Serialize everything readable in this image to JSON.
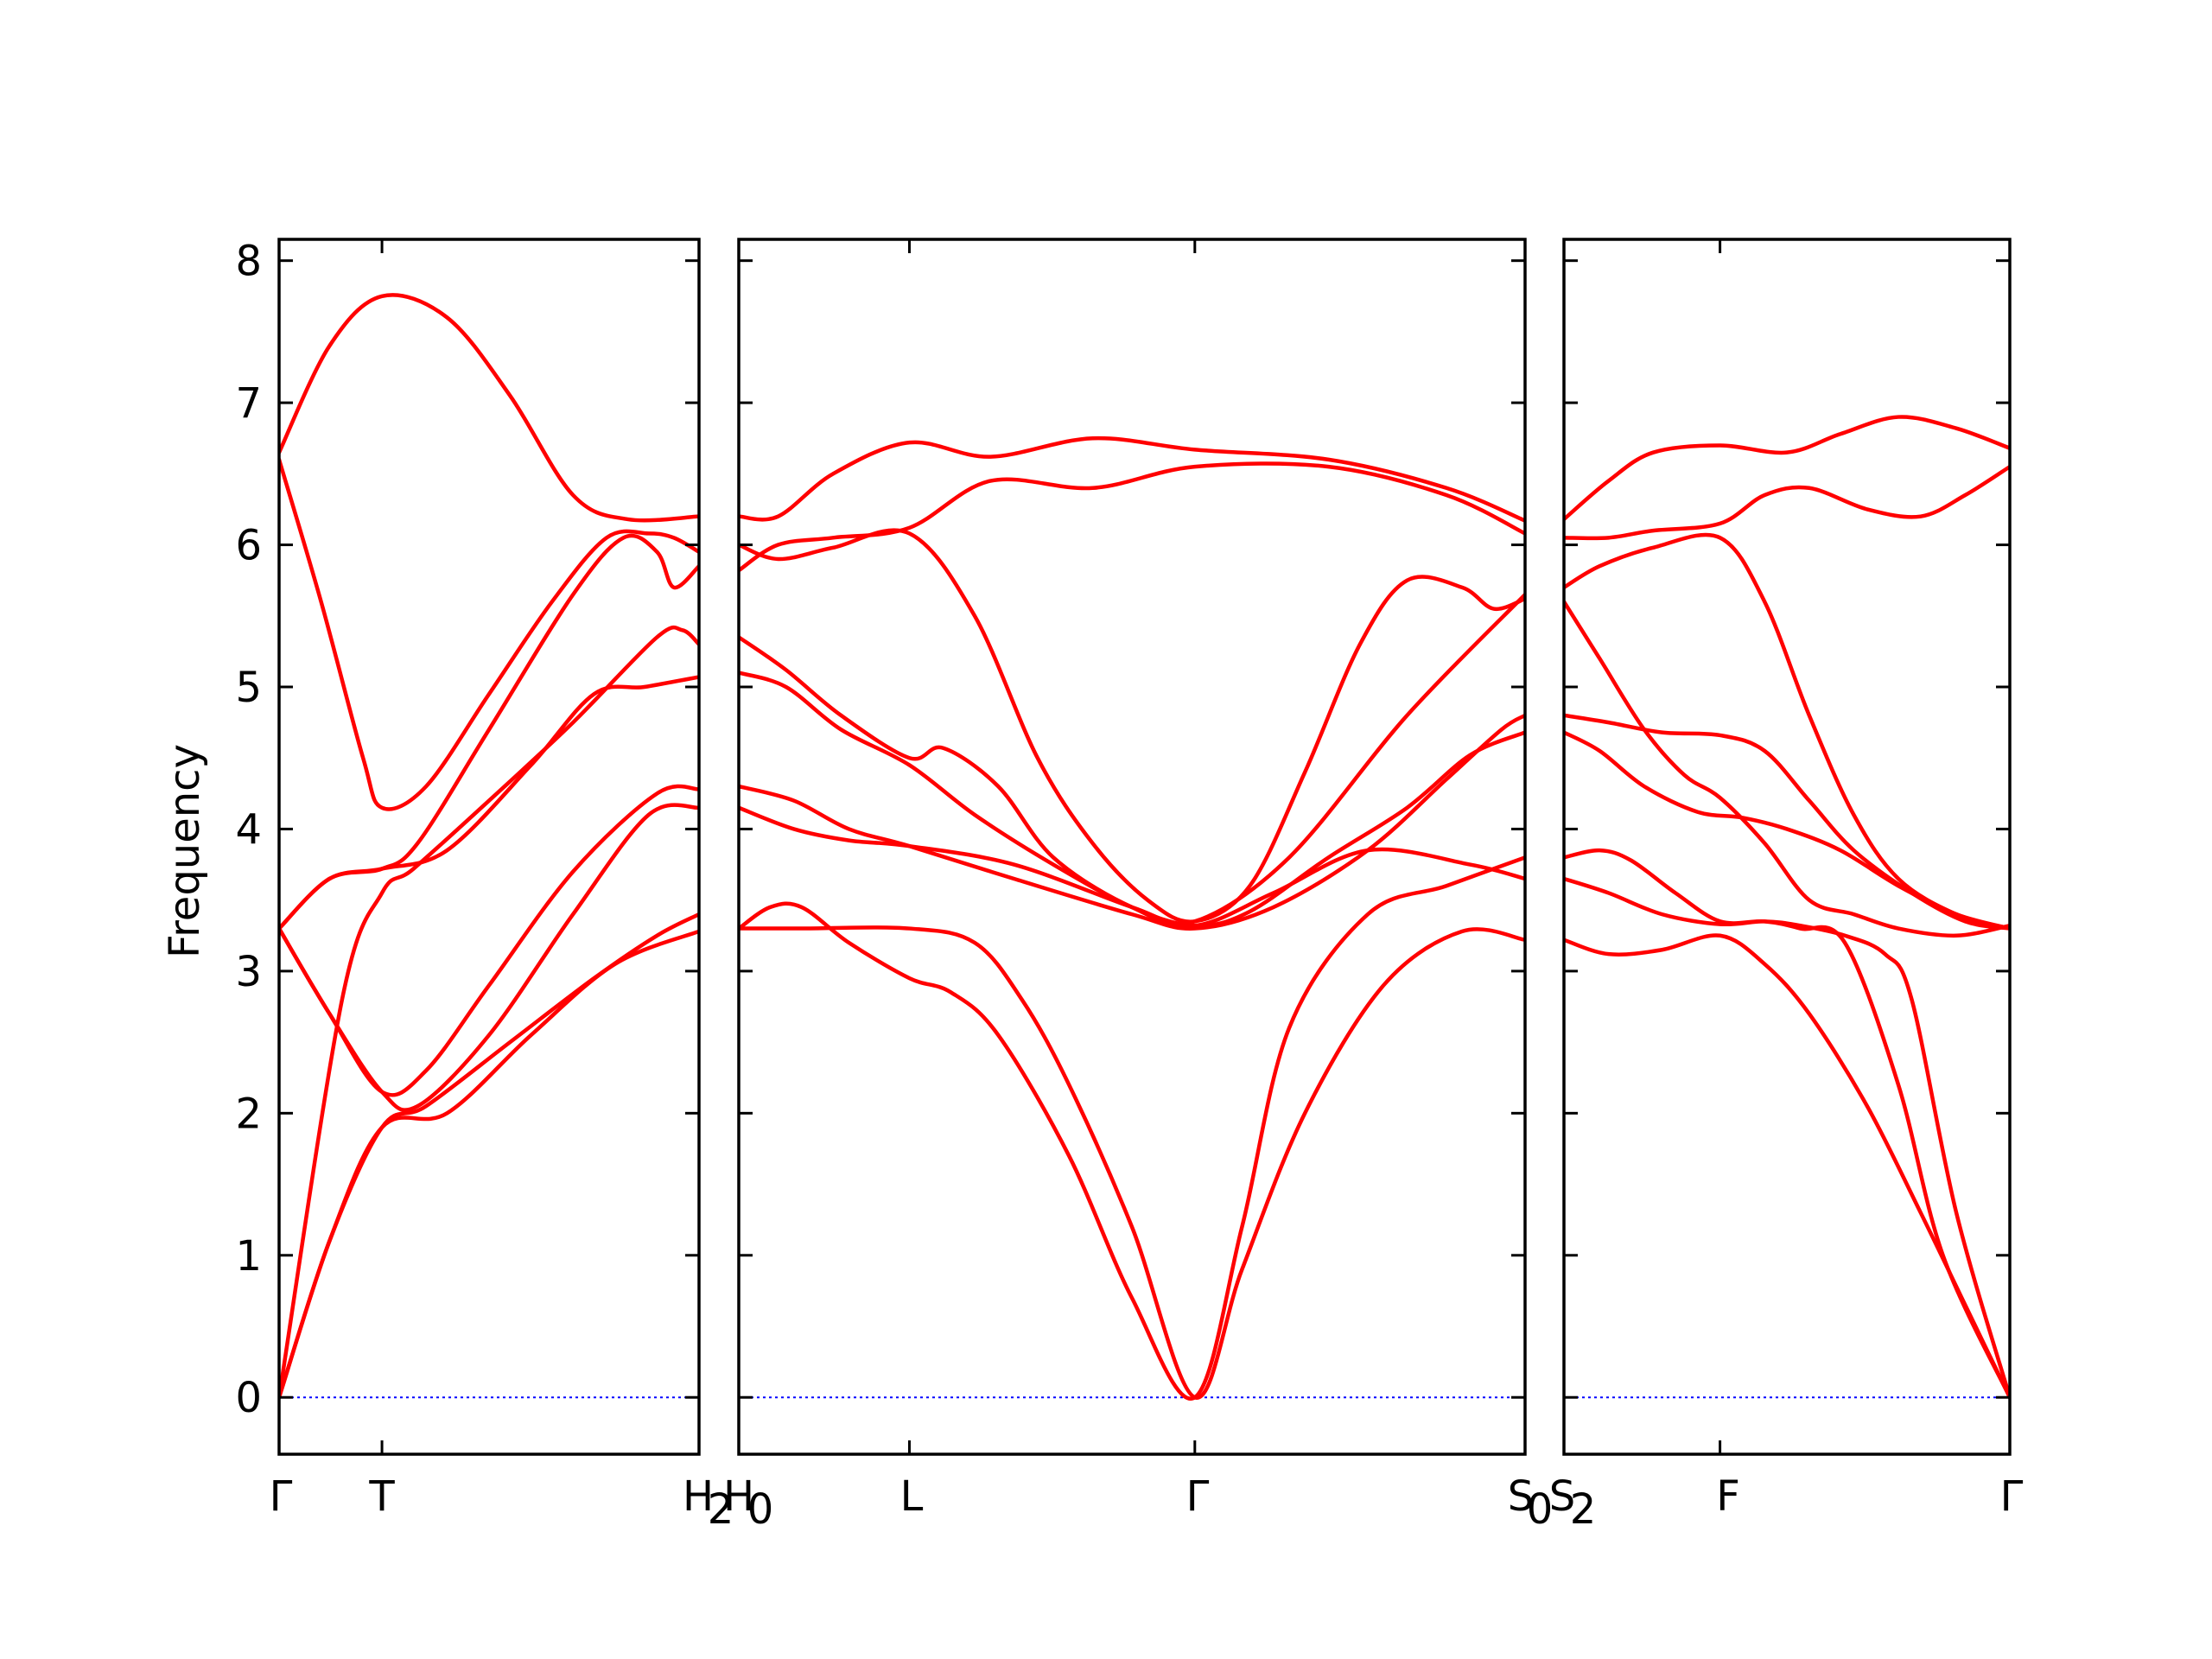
{
  "chart_data": {
    "type": "line",
    "title": "",
    "ylabel": "Frequency",
    "xlabel": "",
    "ylim": [
      -0.4,
      8.15
    ],
    "yticks": [
      0,
      1,
      2,
      3,
      4,
      5,
      6,
      7,
      8
    ],
    "grid": false,
    "legend": "none",
    "colors": {
      "bands": "#ff0000",
      "zero_line": "#0000ff",
      "axes": "#000000"
    },
    "segments": [
      {
        "labels": [
          "Γ",
          "T",
          "H",
          "2"
        ],
        "tick_x": [
          0,
          0.245,
          1.0
        ],
        "xlim": [
          0,
          1
        ],
        "series": [
          {
            "x": [
              0,
              0.12,
              0.245,
              0.4,
              0.55,
              0.7,
              0.83,
              1.0
            ],
            "y": [
              6.65,
              7.4,
              7.75,
              7.6,
              7.05,
              6.35,
              6.18,
              6.2
            ]
          },
          {
            "x": [
              0,
              0.1,
              0.2,
              0.245,
              0.35,
              0.5,
              0.65,
              0.78,
              0.88,
              0.94,
              1.0
            ],
            "y": [
              6.6,
              5.6,
              4.5,
              4.15,
              4.3,
              4.95,
              5.6,
              6.05,
              6.08,
              6.05,
              5.95
            ]
          },
          {
            "x": [
              0,
              0.12,
              0.245,
              0.33,
              0.5,
              0.7,
              0.82,
              0.9,
              0.94,
              1.0
            ],
            "y": [
              3.3,
              3.65,
              3.72,
              3.9,
              4.7,
              5.65,
              6.05,
              5.95,
              5.7,
              5.85
            ]
          },
          {
            "x": [
              0,
              0.12,
              0.245,
              0.4,
              0.6,
              0.75,
              0.87,
              1.0
            ],
            "y": [
              3.3,
              3.65,
              3.72,
              3.85,
              4.45,
              4.95,
              5.0,
              5.07
            ]
          },
          {
            "x": [
              0,
              0.15,
              0.245,
              0.32,
              0.5,
              0.7,
              0.9,
              0.96,
              1.0
            ],
            "y": [
              0.0,
              2.8,
              3.55,
              3.72,
              4.2,
              4.75,
              5.35,
              5.4,
              5.3
            ]
          },
          {
            "x": [
              0,
              0.12,
              0.245,
              0.35,
              0.5,
              0.7,
              0.9,
              1.0
            ],
            "y": [
              3.3,
              2.7,
              2.15,
              2.3,
              2.9,
              3.7,
              4.25,
              4.28
            ]
          },
          {
            "x": [
              0,
              0.12,
              0.245,
              0.33,
              0.5,
              0.7,
              0.88,
              1.0
            ],
            "y": [
              3.3,
              2.7,
              2.15,
              2.05,
              2.55,
              3.4,
              4.1,
              4.15
            ]
          },
          {
            "x": [
              0,
              0.12,
              0.245,
              0.35,
              0.55,
              0.75,
              0.9,
              1.0
            ],
            "y": [
              0.0,
              1.1,
              1.9,
              2.05,
              2.5,
              2.95,
              3.25,
              3.4
            ]
          },
          {
            "x": [
              0,
              0.12,
              0.245,
              0.4,
              0.6,
              0.8,
              1.0
            ],
            "y": [
              0.0,
              1.1,
              1.9,
              2.0,
              2.55,
              3.05,
              3.28
            ]
          }
        ]
      },
      {
        "labels": [
          "H",
          "0",
          "L",
          "Γ",
          "S",
          "0"
        ],
        "tick_x": [
          0,
          0.217,
          0.58,
          1.0
        ],
        "xlim": [
          0,
          1
        ],
        "series": [
          {
            "x": [
              0,
              0.05,
              0.12,
              0.217,
              0.32,
              0.45,
              0.58,
              0.75,
              0.9,
              1.0
            ],
            "y": [
              6.2,
              6.2,
              6.5,
              6.72,
              6.62,
              6.75,
              6.67,
              6.6,
              6.4,
              6.17
            ]
          },
          {
            "x": [
              0,
              0.05,
              0.12,
              0.217,
              0.32,
              0.45,
              0.58,
              0.75,
              0.9,
              1.0
            ],
            "y": [
              5.82,
              6.0,
              6.05,
              6.12,
              6.45,
              6.4,
              6.55,
              6.55,
              6.35,
              6.08
            ]
          },
          {
            "x": [
              0,
              0.05,
              0.12,
              0.217,
              0.3,
              0.38,
              0.45,
              0.52,
              0.58,
              0.65,
              0.72,
              0.79,
              0.85,
              0.92,
              0.96,
              1.0
            ],
            "y": [
              6.0,
              5.9,
              5.98,
              6.08,
              5.5,
              4.5,
              3.9,
              3.5,
              3.35,
              3.6,
              4.4,
              5.3,
              5.75,
              5.7,
              5.55,
              5.62
            ]
          },
          {
            "x": [
              0,
              0.06,
              0.13,
              0.217,
              0.26,
              0.33,
              0.4,
              0.5,
              0.58,
              0.7,
              0.85,
              1.0
            ],
            "y": [
              5.35,
              5.12,
              4.8,
              4.5,
              4.57,
              4.3,
              3.8,
              3.45,
              3.35,
              3.8,
              4.8,
              5.65
            ]
          },
          {
            "x": [
              0,
              0.06,
              0.13,
              0.217,
              0.3,
              0.4,
              0.5,
              0.58,
              0.65,
              0.75,
              0.85,
              0.93,
              1.0
            ],
            "y": [
              5.1,
              5.0,
              4.7,
              4.45,
              4.1,
              3.75,
              3.45,
              3.32,
              3.42,
              3.8,
              4.15,
              4.52,
              4.68
            ]
          },
          {
            "x": [
              0,
              0.07,
              0.14,
              0.217,
              0.35,
              0.5,
              0.58,
              0.68,
              0.8,
              0.9,
              0.97,
              1.0
            ],
            "y": [
              4.3,
              4.2,
              4.0,
              3.88,
              3.65,
              3.4,
              3.3,
              3.45,
              3.85,
              4.35,
              4.7,
              4.8
            ]
          },
          {
            "x": [
              0,
              0.07,
              0.14,
              0.217,
              0.35,
              0.5,
              0.58,
              0.68,
              0.8,
              0.93,
              1.0
            ],
            "y": [
              4.15,
              4.0,
              3.92,
              3.88,
              3.75,
              3.45,
              3.32,
              3.55,
              3.85,
              3.75,
              3.65
            ]
          },
          {
            "x": [
              0,
              0.04,
              0.08,
              0.14,
              0.217,
              0.27,
              0.33,
              0.42,
              0.5,
              0.58,
              0.64,
              0.7,
              0.8,
              0.9,
              1.0
            ],
            "y": [
              3.3,
              3.45,
              3.45,
              3.2,
              2.95,
              2.85,
              2.55,
              1.7,
              0.7,
              0.0,
              1.2,
              2.6,
              3.4,
              3.6,
              3.8
            ]
          },
          {
            "x": [
              0,
              0.08,
              0.217,
              0.3,
              0.36,
              0.42,
              0.5,
              0.58,
              0.64,
              0.72,
              0.82,
              0.92,
              1.0
            ],
            "y": [
              3.3,
              3.3,
              3.3,
              3.2,
              2.8,
              2.2,
              1.2,
              0.0,
              0.9,
              2.0,
              2.9,
              3.28,
              3.22
            ]
          }
        ]
      },
      {
        "labels": [
          "S",
          "2",
          "F",
          "Γ"
        ],
        "tick_x": [
          0,
          0.35,
          1.0
        ],
        "xlim": [
          0,
          1
        ],
        "series": [
          {
            "x": [
              0,
              0.1,
              0.2,
              0.35,
              0.5,
              0.62,
              0.75,
              0.88,
              1.0
            ],
            "y": [
              6.18,
              6.45,
              6.65,
              6.7,
              6.65,
              6.78,
              6.9,
              6.82,
              6.68
            ]
          },
          {
            "x": [
              0,
              0.1,
              0.2,
              0.35,
              0.45,
              0.55,
              0.68,
              0.8,
              0.9,
              1.0
            ],
            "y": [
              6.05,
              6.05,
              6.1,
              6.15,
              6.35,
              6.4,
              6.25,
              6.2,
              6.35,
              6.55
            ]
          },
          {
            "x": [
              0,
              0.08,
              0.2,
              0.35,
              0.45,
              0.55,
              0.65,
              0.75,
              0.88,
              1.0
            ],
            "y": [
              5.7,
              5.85,
              5.98,
              6.05,
              5.6,
              4.8,
              4.1,
              3.65,
              3.4,
              3.3
            ]
          },
          {
            "x": [
              0,
              0.08,
              0.18,
              0.27,
              0.35,
              0.45,
              0.55,
              0.65,
              0.75,
              0.88,
              1.0
            ],
            "y": [
              5.6,
              5.2,
              4.7,
              4.38,
              4.22,
              3.9,
              3.5,
              3.4,
              3.3,
              3.25,
              3.32
            ]
          },
          {
            "x": [
              0,
              0.1,
              0.22,
              0.35,
              0.45,
              0.55,
              0.65,
              0.78,
              0.9,
              1.0
            ],
            "y": [
              4.8,
              4.75,
              4.68,
              4.66,
              4.55,
              4.2,
              3.85,
              3.55,
              3.35,
              3.3
            ]
          },
          {
            "x": [
              0,
              0.08,
              0.18,
              0.3,
              0.4,
              0.5,
              0.62,
              0.75,
              0.88,
              1.0
            ],
            "y": [
              4.68,
              4.55,
              4.3,
              4.12,
              4.08,
              4.0,
              3.85,
              3.6,
              3.4,
              3.3
            ]
          },
          {
            "x": [
              0,
              0.08,
              0.15,
              0.25,
              0.35,
              0.45,
              0.53,
              0.63,
              0.75,
              0.85,
              1.0
            ],
            "y": [
              3.8,
              3.85,
              3.78,
              3.55,
              3.35,
              3.35,
              3.3,
              3.2,
              2.2,
              1.0,
              0.0
            ]
          },
          {
            "x": [
              0,
              0.1,
              0.22,
              0.35,
              0.45,
              0.53,
              0.63,
              0.72,
              0.78,
              0.88,
              1.0
            ],
            "y": [
              3.65,
              3.55,
              3.4,
              3.33,
              3.35,
              3.32,
              3.25,
              3.12,
              2.8,
              1.3,
              0.0
            ]
          },
          {
            "x": [
              0,
              0.1,
              0.22,
              0.35,
              0.45,
              0.55,
              0.68,
              0.8,
              0.9,
              1.0
            ],
            "y": [
              3.22,
              3.12,
              3.15,
              3.25,
              3.05,
              2.7,
              2.05,
              1.3,
              0.65,
              0.0
            ]
          }
        ]
      }
    ]
  }
}
